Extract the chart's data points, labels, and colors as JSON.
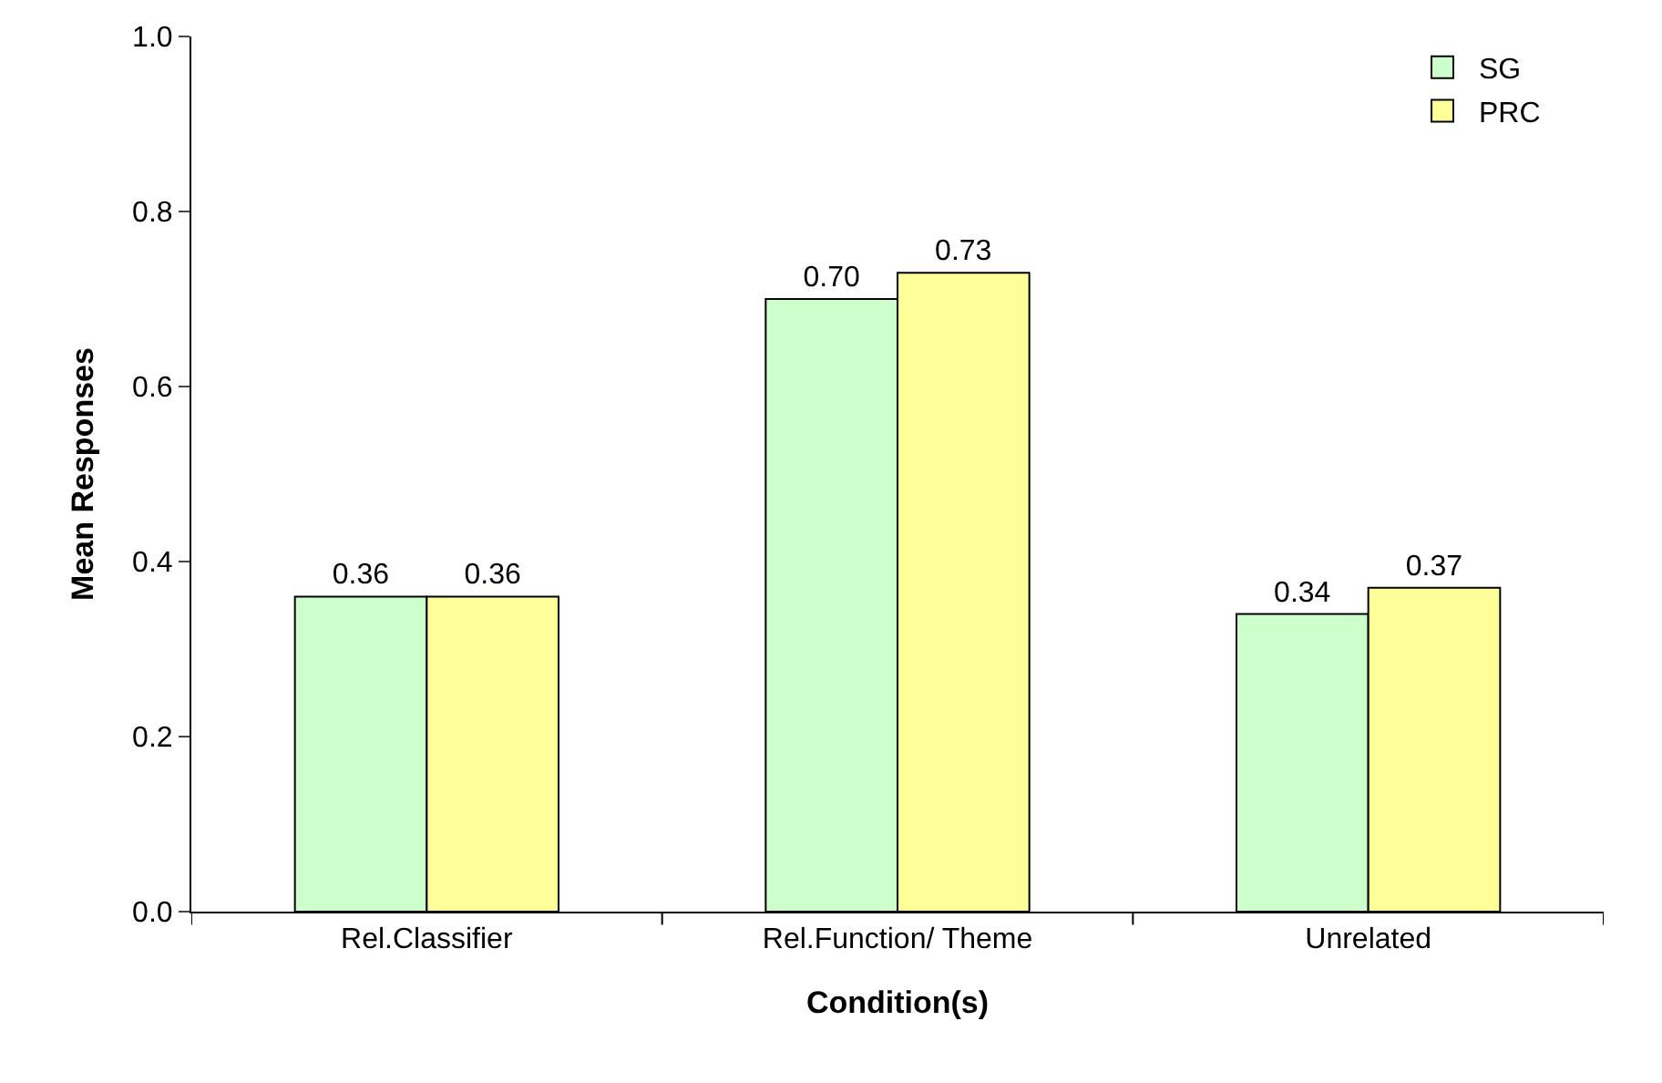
{
  "chart_data": {
    "type": "bar",
    "xlabel": "Condition(s)",
    "ylabel": "Mean Responses",
    "categories": [
      "Rel.Classifier",
      "Rel.Function/ Theme",
      "Unrelated"
    ],
    "series": [
      {
        "name": "SG",
        "color": "#ccffcc",
        "values": [
          0.36,
          0.7,
          0.34
        ],
        "value_labels": [
          "0.36",
          "0.70",
          "0.34"
        ]
      },
      {
        "name": "PRC",
        "color": "#ffff99",
        "values": [
          0.36,
          0.73,
          0.37
        ],
        "value_labels": [
          "0.36",
          "0.73",
          "0.37"
        ]
      }
    ],
    "ylim": [
      0,
      1
    ],
    "yticks": [
      {
        "value": 0,
        "label": "0.0"
      },
      {
        "value": 0.2,
        "label": "0.2"
      },
      {
        "value": 0.4,
        "label": "0.4"
      },
      {
        "value": 0.6,
        "label": "0.6"
      },
      {
        "value": 0.8,
        "label": "0.8"
      },
      {
        "value": 1,
        "label": "1.0"
      }
    ],
    "grid": false,
    "legend": "top right"
  }
}
